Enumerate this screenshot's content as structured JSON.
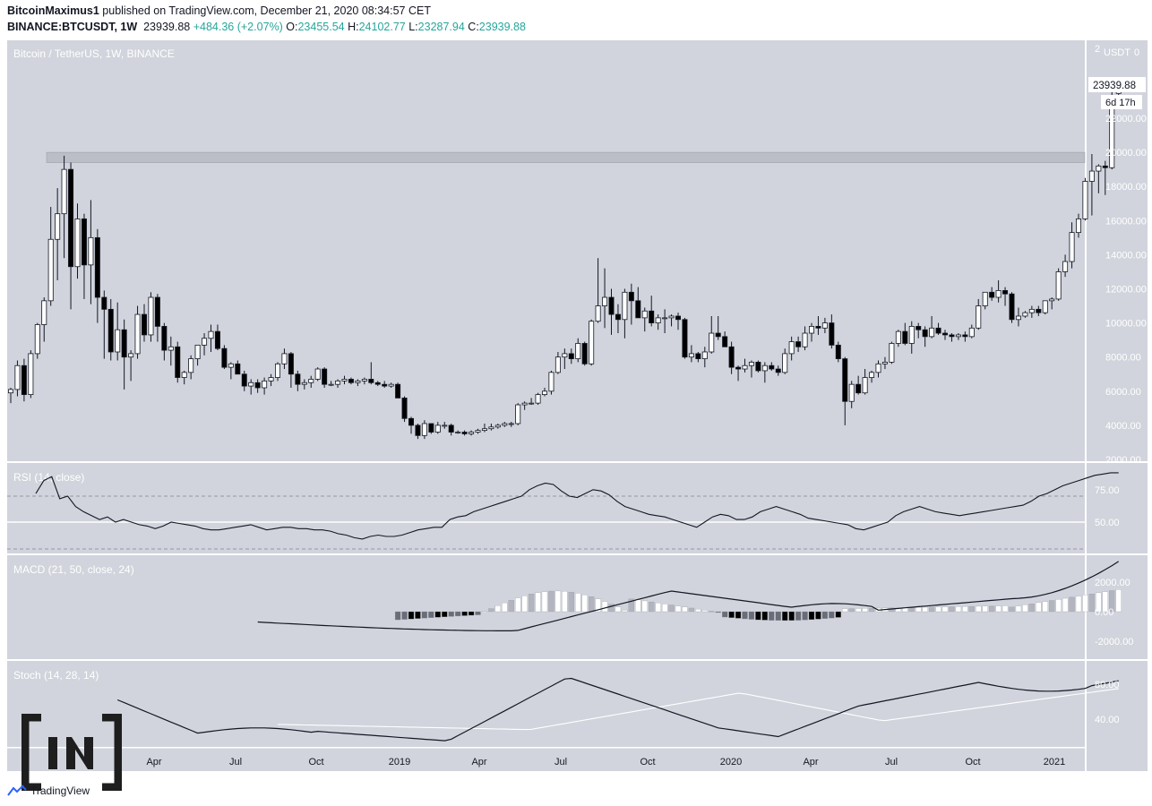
{
  "header": {
    "author": "BitcoinMaximus1",
    "published": " published on TradingView.com, December 21, 2020 08:34:57 CET",
    "symbol": "BINANCE:BTCUSDT, 1W",
    "last": "23939.88",
    "change": "+484.36 (+2.07%)",
    "o_label": "O:",
    "o_value": "23455.54",
    "h_label": "H:",
    "h_value": "24102.77",
    "l_label": "L:",
    "l_value": "23287.94",
    "c_label": "C:",
    "c_value": "23939.88"
  },
  "main_pane": {
    "title": "Bitcoin / TetherUS, 1W, BINANCE",
    "currency": "USDT",
    "price_badge": "23939.88",
    "countdown": "6d 17h",
    "y_ticks": [
      "22000.00",
      "20000.00",
      "18000.00",
      "16000.00",
      "14000.00",
      "12000.00",
      "10000.00",
      "8000.00",
      "6000.00",
      "4000.00",
      "2000.00"
    ],
    "colors": {
      "up": "#ffffff",
      "down": "#000000",
      "bg": "#d1d4dc",
      "resistance": "#b2b5be"
    }
  },
  "rsi_pane": {
    "title": "RSI (14, close)",
    "y_ticks": [
      "75.00",
      "50.00"
    ]
  },
  "macd_pane": {
    "title": "MACD (21, 50, close, 24)",
    "y_ticks": [
      "2000.00",
      "0.00",
      "-2000.00"
    ]
  },
  "stoch_pane": {
    "title": "Stoch (14, 28, 14)",
    "y_ticks": [
      "80.00",
      "40.00"
    ]
  },
  "x_axis": {
    "labels": [
      "Apr",
      "Jul",
      "Oct",
      "2019",
      "Apr",
      "Jul",
      "Oct",
      "2020",
      "Apr",
      "Jul",
      "Oct",
      "2021"
    ]
  },
  "brand": {
    "name": "TradingView",
    "overlay_logo": "[IN]"
  },
  "chart_data": {
    "type": "candlestick",
    "interval": "1W",
    "price_ylim": [
      2000,
      25000
    ],
    "resistance_zone": [
      19400,
      20000
    ],
    "candles_ohlc": [
      [
        5900,
        6200,
        5300,
        6100
      ],
      [
        6100,
        7800,
        5700,
        7500
      ],
      [
        7500,
        7900,
        5400,
        5800
      ],
      [
        5800,
        8400,
        5600,
        8200
      ],
      [
        8200,
        10000,
        7900,
        9900
      ],
      [
        9900,
        11500,
        8900,
        11300
      ],
      [
        11300,
        16800,
        11000,
        14900
      ],
      [
        14900,
        17900,
        12500,
        16400
      ],
      [
        16400,
        19800,
        13800,
        19000
      ],
      [
        19000,
        19400,
        10800,
        13300
      ],
      [
        13300,
        17000,
        12600,
        16100
      ],
      [
        16100,
        16400,
        11400,
        13400
      ],
      [
        13400,
        17200,
        11100,
        15000
      ],
      [
        15000,
        15500,
        10000,
        11500
      ],
      [
        11500,
        11900,
        7900,
        10800
      ],
      [
        10800,
        11400,
        7800,
        8300
      ],
      [
        8300,
        11200,
        7800,
        9600
      ],
      [
        9600,
        10200,
        6100,
        8000
      ],
      [
        8000,
        8400,
        6600,
        8200
      ],
      [
        8200,
        11000,
        7900,
        10500
      ],
      [
        10500,
        11100,
        8900,
        9300
      ],
      [
        9300,
        11800,
        8900,
        11500
      ],
      [
        11500,
        11700,
        8900,
        9800
      ],
      [
        9800,
        10000,
        7800,
        8400
      ],
      [
        8400,
        9200,
        7500,
        8600
      ],
      [
        8600,
        8900,
        6500,
        6800
      ],
      [
        6800,
        7200,
        6400,
        7100
      ],
      [
        7100,
        8100,
        6700,
        7900
      ],
      [
        7900,
        8700,
        7500,
        8700
      ],
      [
        8700,
        9400,
        8100,
        9100
      ],
      [
        9100,
        9900,
        8300,
        9500
      ],
      [
        9500,
        9900,
        8400,
        8500
      ],
      [
        8500,
        8700,
        7300,
        7400
      ],
      [
        7400,
        7700,
        6700,
        7600
      ],
      [
        7600,
        7800,
        7000,
        7000
      ],
      [
        7000,
        7200,
        6000,
        6300
      ],
      [
        6300,
        6700,
        5800,
        6500
      ],
      [
        6500,
        6700,
        5900,
        6200
      ],
      [
        6200,
        6800,
        5800,
        6600
      ],
      [
        6600,
        7000,
        6300,
        6800
      ],
      [
        6800,
        7700,
        6600,
        7600
      ],
      [
        7600,
        8500,
        7300,
        8200
      ],
      [
        8200,
        8300,
        6200,
        7000
      ],
      [
        7000,
        7200,
        6000,
        6400
      ],
      [
        6400,
        6700,
        6100,
        6500
      ],
      [
        6500,
        6900,
        6200,
        6700
      ],
      [
        6700,
        7400,
        6600,
        7300
      ],
      [
        7300,
        7400,
        6200,
        6400
      ],
      [
        6400,
        6600,
        6300,
        6400
      ],
      [
        6400,
        6700,
        6200,
        6600
      ],
      [
        6600,
        6900,
        6400,
        6700
      ],
      [
        6700,
        6800,
        6400,
        6500
      ],
      [
        6500,
        6700,
        6300,
        6600
      ],
      [
        6600,
        6800,
        6400,
        6700
      ],
      [
        6700,
        7700,
        6400,
        6500
      ],
      [
        6500,
        6600,
        6300,
        6400
      ],
      [
        6400,
        6600,
        6200,
        6300
      ],
      [
        6300,
        6500,
        6200,
        6400
      ],
      [
        6400,
        6500,
        5600,
        5600
      ],
      [
        5600,
        5700,
        4200,
        4400
      ],
      [
        4400,
        4500,
        3500,
        4000
      ],
      [
        4000,
        4100,
        3200,
        3400
      ],
      [
        3400,
        4300,
        3200,
        4100
      ],
      [
        4100,
        4100,
        3500,
        3600
      ],
      [
        3600,
        4200,
        3500,
        4000
      ],
      [
        4000,
        4200,
        3800,
        4000
      ],
      [
        4000,
        4100,
        3400,
        3600
      ],
      [
        3600,
        3700,
        3500,
        3600
      ],
      [
        3600,
        3700,
        3400,
        3500
      ],
      [
        3500,
        3700,
        3400,
        3600
      ],
      [
        3600,
        3800,
        3500,
        3700
      ],
      [
        3700,
        4100,
        3600,
        3800
      ],
      [
        3800,
        4100,
        3700,
        3900
      ],
      [
        3900,
        4100,
        3800,
        4000
      ],
      [
        4000,
        4200,
        3900,
        4100
      ],
      [
        4100,
        4200,
        3900,
        4100
      ],
      [
        4100,
        5300,
        4000,
        5200
      ],
      [
        5200,
        5400,
        4900,
        5300
      ],
      [
        5300,
        5600,
        5200,
        5300
      ],
      [
        5300,
        5900,
        5200,
        5800
      ],
      [
        5800,
        6200,
        5700,
        6000
      ],
      [
        6000,
        7200,
        5800,
        7100
      ],
      [
        7100,
        8300,
        7000,
        8000
      ],
      [
        8000,
        8500,
        7300,
        8200
      ],
      [
        8200,
        8500,
        7600,
        7900
      ],
      [
        7900,
        9100,
        7700,
        8800
      ],
      [
        8800,
        8900,
        7500,
        7600
      ],
      [
        7600,
        10200,
        7500,
        10100
      ],
      [
        10100,
        13800,
        10000,
        11000
      ],
      [
        11000,
        13200,
        9700,
        11500
      ],
      [
        11500,
        12000,
        9300,
        10500
      ],
      [
        10500,
        11100,
        9400,
        10200
      ],
      [
        10200,
        12000,
        9100,
        11800
      ],
      [
        11800,
        12300,
        9900,
        11300
      ],
      [
        11300,
        12100,
        10300,
        10300
      ],
      [
        10300,
        10900,
        9500,
        10700
      ],
      [
        10700,
        11600,
        9800,
        10000
      ],
      [
        10000,
        10500,
        9600,
        10300
      ],
      [
        10300,
        10800,
        9400,
        10300
      ],
      [
        10300,
        10500,
        9800,
        10400
      ],
      [
        10400,
        10600,
        9600,
        10200
      ],
      [
        10200,
        10300,
        7900,
        8000
      ],
      [
        8000,
        8700,
        7700,
        8200
      ],
      [
        8200,
        8300,
        7700,
        7900
      ],
      [
        7900,
        8600,
        7400,
        8300
      ],
      [
        8300,
        10400,
        8200,
        9400
      ],
      [
        9400,
        10400,
        9000,
        9200
      ],
      [
        9200,
        9500,
        8700,
        8600
      ],
      [
        8600,
        8900,
        7000,
        7400
      ],
      [
        7400,
        7500,
        6600,
        7300
      ],
      [
        7300,
        7900,
        7100,
        7500
      ],
      [
        7500,
        7800,
        6800,
        7700
      ],
      [
        7700,
        7800,
        7100,
        7200
      ],
      [
        7200,
        7700,
        6500,
        7500
      ],
      [
        7500,
        7700,
        7200,
        7300
      ],
      [
        7300,
        7500,
        6900,
        7100
      ],
      [
        7100,
        8500,
        7000,
        8200
      ],
      [
        8200,
        9200,
        7800,
        8900
      ],
      [
        8900,
        9200,
        8300,
        8600
      ],
      [
        8600,
        9800,
        8400,
        9400
      ],
      [
        9400,
        10000,
        8900,
        9800
      ],
      [
        9800,
        10400,
        9300,
        9700
      ],
      [
        9700,
        10300,
        9400,
        10000
      ],
      [
        10000,
        10500,
        8500,
        8700
      ],
      [
        8700,
        8900,
        7700,
        7900
      ],
      [
        7900,
        8000,
        4000,
        5400
      ],
      [
        5400,
        6600,
        5000,
        6400
      ],
      [
        6400,
        6900,
        5800,
        5900
      ],
      [
        5900,
        7300,
        5800,
        6800
      ],
      [
        6800,
        7200,
        6500,
        7100
      ],
      [
        7100,
        7800,
        6800,
        7600
      ],
      [
        7600,
        8000,
        7300,
        7700
      ],
      [
        7700,
        8900,
        7600,
        8800
      ],
      [
        8800,
        9600,
        8600,
        9500
      ],
      [
        9500,
        10000,
        8700,
        8800
      ],
      [
        8800,
        10100,
        8200,
        9800
      ],
      [
        9800,
        10000,
        9100,
        9600
      ],
      [
        9600,
        9800,
        8600,
        9200
      ],
      [
        9200,
        10400,
        9100,
        9700
      ],
      [
        9700,
        10000,
        9300,
        9400
      ],
      [
        9400,
        9600,
        9000,
        9300
      ],
      [
        9300,
        9400,
        8900,
        9200
      ],
      [
        9200,
        9400,
        9000,
        9300
      ],
      [
        9300,
        9500,
        8900,
        9200
      ],
      [
        9200,
        9900,
        9100,
        9700
      ],
      [
        9700,
        11400,
        9600,
        11000
      ],
      [
        11000,
        11700,
        10800,
        11800
      ],
      [
        11800,
        12100,
        11300,
        11500
      ],
      [
        11500,
        12500,
        11200,
        11900
      ],
      [
        11900,
        12100,
        11000,
        11700
      ],
      [
        11700,
        11800,
        10000,
        10200
      ],
      [
        10200,
        10900,
        9800,
        10400
      ],
      [
        10400,
        10700,
        10300,
        10600
      ],
      [
        10600,
        11000,
        10300,
        10800
      ],
      [
        10800,
        11000,
        10400,
        10600
      ],
      [
        10600,
        11200,
        10500,
        11300
      ],
      [
        11300,
        11500,
        10800,
        11400
      ],
      [
        11400,
        13200,
        11300,
        13000
      ],
      [
        13000,
        14000,
        12700,
        13600
      ],
      [
        13600,
        15900,
        13200,
        15300
      ],
      [
        15300,
        16400,
        15000,
        16100
      ],
      [
        16100,
        18500,
        16000,
        18300
      ],
      [
        18300,
        19900,
        16300,
        18900
      ],
      [
        18900,
        19300,
        17600,
        19200
      ],
      [
        19200,
        19500,
        17500,
        19100
      ],
      [
        19100,
        23800,
        19000,
        23300
      ],
      [
        23455.54,
        24102.77,
        23287.94,
        23939.88
      ]
    ],
    "rsi": [
      72,
      82,
      85,
      68,
      70,
      62,
      58,
      55,
      52,
      54,
      50,
      52,
      50,
      48,
      47,
      45,
      47,
      50,
      49,
      48,
      47,
      45,
      44,
      44,
      45,
      46,
      47,
      48,
      46,
      44,
      45,
      46,
      46,
      45,
      45,
      44,
      44,
      43,
      41,
      40,
      38,
      37,
      39,
      40,
      39,
      39,
      40,
      42,
      44,
      45,
      46,
      46,
      52,
      54,
      55,
      58,
      60,
      62,
      64,
      66,
      68,
      70,
      75,
      78,
      80,
      79,
      74,
      70,
      69,
      72,
      75,
      74,
      71,
      66,
      62,
      60,
      58,
      56,
      55,
      54,
      52,
      50,
      48,
      46,
      50,
      54,
      56,
      55,
      52,
      52,
      54,
      58,
      60,
      62,
      60,
      58,
      56,
      53,
      52,
      51,
      50,
      49,
      48,
      45,
      44,
      46,
      48,
      50,
      55,
      58,
      60,
      62,
      60,
      58,
      57,
      56,
      55,
      56,
      57,
      58,
      59,
      60,
      61,
      62,
      63,
      66,
      70,
      72,
      75,
      78,
      80,
      82,
      84,
      86,
      87,
      88,
      88
    ],
    "macd_histogram_range": [
      -700,
      1600
    ],
    "macd_line_range": [
      -1300,
      3400
    ],
    "stoch_k_range": [
      15,
      88
    ],
    "stoch_d_range": [
      28,
      75
    ]
  }
}
